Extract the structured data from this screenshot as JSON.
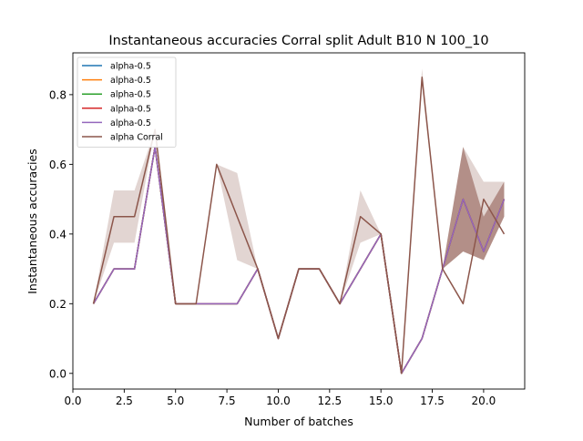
{
  "chart_data": {
    "type": "line",
    "title": "Instantaneous accuracies Corral split Adult B10 N 100_10",
    "xlabel": "Number of batches",
    "ylabel": "Instantaneous accuracies",
    "xlim": [
      0.0,
      22.0
    ],
    "ylim": [
      -0.045,
      0.92
    ],
    "xticks": [
      0.0,
      2.5,
      5.0,
      7.5,
      10.0,
      12.5,
      15.0,
      17.5,
      20.0
    ],
    "xtick_labels": [
      "0.0",
      "2.5",
      "5.0",
      "7.5",
      "10.0",
      "12.5",
      "15.0",
      "17.5",
      "20.0"
    ],
    "yticks": [
      0.0,
      0.2,
      0.4,
      0.6,
      0.8
    ],
    "ytick_labels": [
      "0.0",
      "0.2",
      "0.4",
      "0.6",
      "0.8"
    ],
    "grid": false,
    "legend_position": "top-left",
    "x": [
      1,
      2,
      3,
      4,
      5,
      6,
      7,
      8,
      9,
      10,
      11,
      12,
      13,
      14,
      15,
      16,
      17,
      18,
      19,
      20,
      21
    ],
    "series": [
      {
        "name": "alpha-0.5",
        "color": "#1f77b4",
        "values": [
          0.2,
          0.3,
          0.3,
          0.65,
          0.2,
          0.2,
          0.2,
          0.2,
          0.3,
          0.1,
          0.3,
          0.3,
          0.2,
          0.3,
          0.4,
          0.0,
          0.1,
          0.3,
          0.5,
          0.35,
          0.5
        ]
      },
      {
        "name": "alpha-0.5",
        "color": "#ff7f0e",
        "values": [
          0.2,
          0.3,
          0.3,
          0.65,
          0.2,
          0.2,
          0.2,
          0.2,
          0.3,
          0.1,
          0.3,
          0.3,
          0.2,
          0.3,
          0.4,
          0.0,
          0.1,
          0.3,
          0.5,
          0.35,
          0.5
        ]
      },
      {
        "name": "alpha-0.5",
        "color": "#2ca02c",
        "values": [
          0.2,
          0.3,
          0.3,
          0.65,
          0.2,
          0.2,
          0.2,
          0.2,
          0.3,
          0.1,
          0.3,
          0.3,
          0.2,
          0.3,
          0.4,
          0.0,
          0.1,
          0.3,
          0.5,
          0.35,
          0.5
        ]
      },
      {
        "name": "alpha-0.5",
        "color": "#d62728",
        "values": [
          0.2,
          0.3,
          0.3,
          0.65,
          0.2,
          0.2,
          0.2,
          0.2,
          0.3,
          0.1,
          0.3,
          0.3,
          0.2,
          0.3,
          0.4,
          0.0,
          0.1,
          0.3,
          0.5,
          0.35,
          0.5
        ]
      },
      {
        "name": "alpha-0.5",
        "color": "#9467bd",
        "values": [
          0.2,
          0.3,
          0.3,
          0.65,
          0.2,
          0.2,
          0.2,
          0.2,
          0.3,
          0.1,
          0.3,
          0.3,
          0.2,
          0.3,
          0.4,
          0.0,
          0.1,
          0.3,
          0.5,
          0.35,
          0.5
        ]
      },
      {
        "name": "alpha Corral",
        "color": "#8c564b",
        "values": [
          0.2,
          0.45,
          0.45,
          0.7,
          0.2,
          0.2,
          0.6,
          0.45,
          0.3,
          0.1,
          0.3,
          0.3,
          0.2,
          0.45,
          0.4,
          0.0,
          0.85,
          0.3,
          0.2,
          0.5,
          0.4
        ],
        "band_lower": [
          0.2,
          0.375,
          0.375,
          0.7,
          0.2,
          0.2,
          0.6,
          0.325,
          0.3,
          0.1,
          0.3,
          0.3,
          0.2,
          0.375,
          0.4,
          0.0,
          0.825,
          0.3,
          0.35,
          0.325,
          0.45
        ],
        "band_upper": [
          0.2,
          0.525,
          0.525,
          0.7,
          0.2,
          0.2,
          0.6,
          0.575,
          0.3,
          0.1,
          0.3,
          0.3,
          0.2,
          0.525,
          0.4,
          0.0,
          0.875,
          0.3,
          0.65,
          0.55,
          0.55
        ]
      }
    ],
    "bands": [
      {
        "series": "alpha Corral",
        "color": "#8c564b",
        "opacity": 0.25
      },
      {
        "series": "alpha Corral (dark overlap)",
        "color": "#8c564b",
        "opacity": 0.55,
        "x": [
          18,
          19,
          20,
          21
        ],
        "lower": [
          0.3,
          0.35,
          0.325,
          0.45
        ],
        "upper": [
          0.3,
          0.65,
          0.45,
          0.55
        ]
      }
    ]
  }
}
